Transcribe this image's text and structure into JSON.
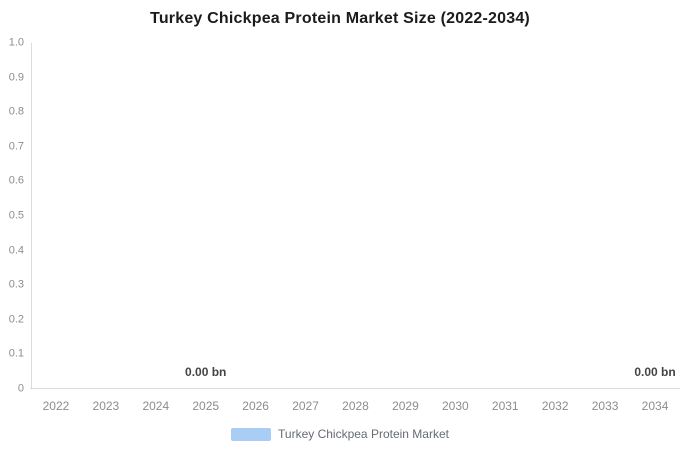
{
  "chart_data": {
    "type": "bar",
    "title": "Turkey Chickpea Protein Market Size (2022-2034)",
    "categories": [
      "2022",
      "2023",
      "2024",
      "2025",
      "2026",
      "2027",
      "2028",
      "2029",
      "2030",
      "2031",
      "2032",
      "2033",
      "2034"
    ],
    "series": [
      {
        "name": "Turkey Chickpea Protein Market",
        "color": "#a9cdf5",
        "values": [
          0,
          0,
          0,
          0,
          0,
          0,
          0,
          0,
          0,
          0,
          0,
          0,
          0
        ]
      }
    ],
    "unit": "bn",
    "xlabel": "",
    "ylabel": "",
    "ylim": [
      0,
      1.0
    ],
    "ytick_labels": [
      "0",
      "0.1",
      "0.2",
      "0.3",
      "0.4",
      "0.5",
      "0.6",
      "0.7",
      "0.8",
      "0.9",
      "1.0"
    ],
    "value_labels": [
      {
        "category": "2025",
        "text": "0.00 bn"
      },
      {
        "category": "2034",
        "text": "0.00 bn"
      }
    ],
    "grid": false,
    "legend": {
      "position": "bottom",
      "entries": [
        "Turkey Chickpea Protein Market"
      ]
    }
  },
  "colors": {
    "series": "#a9cdf5",
    "axis": "#dcdcdc",
    "tick_text": "#8d8d8d",
    "title_text": "#1b1b1b",
    "value_label_text": "#444444",
    "legend_text": "#666b73",
    "background": "#ffffff"
  }
}
